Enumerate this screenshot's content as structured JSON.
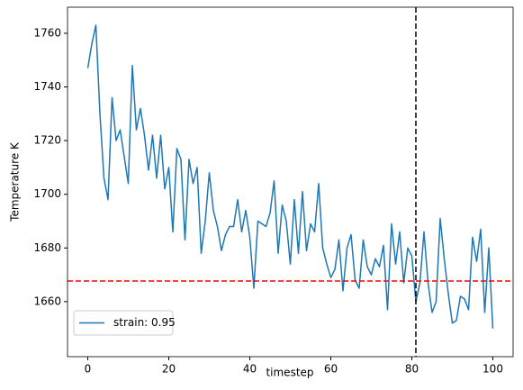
{
  "chart_data": {
    "type": "line",
    "xlabel": "timestep",
    "ylabel": "Temperature K",
    "x": [
      0,
      1,
      2,
      3,
      4,
      5,
      6,
      7,
      8,
      9,
      10,
      11,
      12,
      13,
      14,
      15,
      16,
      17,
      18,
      19,
      20,
      21,
      22,
      23,
      24,
      25,
      26,
      27,
      28,
      29,
      30,
      31,
      32,
      33,
      34,
      35,
      36,
      37,
      38,
      39,
      40,
      41,
      42,
      43,
      44,
      45,
      46,
      47,
      48,
      49,
      50,
      51,
      52,
      53,
      54,
      55,
      56,
      57,
      58,
      59,
      60,
      61,
      62,
      63,
      64,
      65,
      66,
      67,
      68,
      69,
      70,
      71,
      72,
      73,
      74,
      75,
      76,
      77,
      78,
      79,
      80,
      81,
      82,
      83,
      84,
      85,
      86,
      87,
      88,
      89,
      90,
      91,
      92,
      93,
      94,
      95,
      96,
      97,
      98,
      99,
      100
    ],
    "series": [
      {
        "name": "strain: 0.95",
        "color": "#1f77b4",
        "values": [
          1747,
          1756,
          1763,
          1730,
          1706,
          1698,
          1736,
          1720,
          1724,
          1714,
          1704,
          1748,
          1724,
          1732,
          1722,
          1709,
          1722,
          1706,
          1722,
          1702,
          1710,
          1686,
          1717,
          1713,
          1683,
          1713,
          1704,
          1710,
          1678,
          1690,
          1708,
          1694,
          1688,
          1679,
          1685,
          1688,
          1688,
          1698,
          1686,
          1694,
          1684,
          1665,
          1690,
          1689,
          1688,
          1693,
          1705,
          1678,
          1696,
          1690,
          1674,
          1698,
          1678,
          1701,
          1679,
          1689,
          1686,
          1704,
          1680,
          1674,
          1669,
          1672,
          1683,
          1664,
          1680,
          1685,
          1668,
          1665,
          1683,
          1673,
          1670,
          1676,
          1673,
          1681,
          1657,
          1689,
          1674,
          1686,
          1667,
          1680,
          1677,
          1660,
          1667,
          1686,
          1667,
          1656,
          1660,
          1691,
          1676,
          1663,
          1652,
          1653,
          1662,
          1661,
          1657,
          1684,
          1675,
          1687,
          1656,
          1680,
          1650
        ]
      }
    ],
    "xlim": [
      -5,
      105
    ],
    "ylim": [
      1639.5,
      1769.7
    ],
    "xticks": [
      0,
      20,
      40,
      60,
      80,
      100
    ],
    "yticks": [
      1660,
      1680,
      1700,
      1720,
      1740,
      1760
    ],
    "hline": {
      "value": 1667.7,
      "color": "#ff0000"
    },
    "vline": {
      "value": 81,
      "color": "#000000"
    },
    "legend": "lower left"
  }
}
